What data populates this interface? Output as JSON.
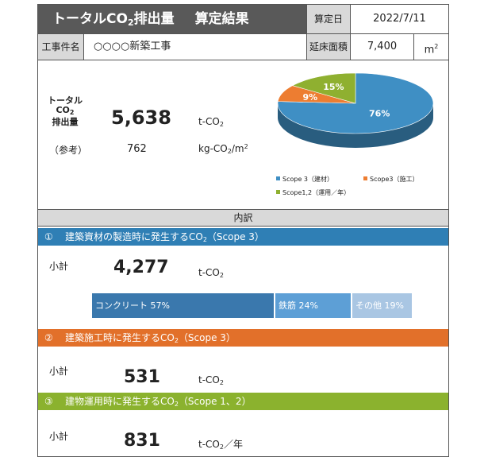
{
  "header": {
    "title_pre": "トータルCO",
    "title_sub": "2",
    "title_post": "排出量",
    "title_suffix": "算定結果",
    "date_label": "算定日",
    "date_value": "2022/7/11"
  },
  "project": {
    "name_label": "工事件名",
    "name_value": "○○○○新築工事",
    "area_label": "延床面積",
    "area_value": "7,400",
    "area_unit": "m",
    "area_unit_sup": "2"
  },
  "total": {
    "label_line1": "トータル",
    "label_line2": "CO",
    "label_line2_sub": "2",
    "label_line3": "排出量",
    "value": "5,638",
    "unit_pre": "t-CO",
    "unit_sub": "2",
    "ref_label": "（参考）",
    "ref_value": "762",
    "ref_unit_pre": "kg-CO",
    "ref_unit_sub": "2",
    "ref_unit_mid": "/m",
    "ref_unit_sup": "2"
  },
  "pie": {
    "slices": [
      {
        "label": "Scope 3（建材）",
        "value": 76,
        "display": "76%",
        "color": "#3f8fc4"
      },
      {
        "label": "Scope3（施工）",
        "value": 9,
        "display": "9%",
        "color": "#ed7d31"
      },
      {
        "label": "Scope1,2（運用／年）",
        "value": 15,
        "display": "15%",
        "color": "#8fb030"
      }
    ]
  },
  "breakdown_title": "内訳",
  "sections": [
    {
      "number": "①",
      "title_pre": "建築資材の製造時に発生するCO",
      "title_sub": "2",
      "title_post": "（Scope 3）",
      "color": "#2f7fb5",
      "subtotal_label": "小計",
      "value": "4,277",
      "unit_pre": "t-CO",
      "unit_sub": "2",
      "unit_post": ""
    },
    {
      "number": "②",
      "title_pre": "建築施工時に発生するCO",
      "title_sub": "2",
      "title_post": "（Scope 3）",
      "color": "#e2702a",
      "subtotal_label": "小計",
      "value": "531",
      "unit_pre": "t-CO",
      "unit_sub": "2",
      "unit_post": ""
    },
    {
      "number": "③",
      "title_pre": "建物運用時に発生するCO",
      "title_sub": "2",
      "title_post": "（Scope 1、2）",
      "color": "#8bb22e",
      "subtotal_label": "小計",
      "value": "831",
      "unit_pre": "t-CO",
      "unit_sub": "2",
      "unit_post": "／年"
    }
  ],
  "materials": [
    {
      "label": "コンクリート 57%",
      "value": 57,
      "color": "#3a78ad"
    },
    {
      "label": "鉄筋 24%",
      "value": 24,
      "color": "#5d9fd6"
    },
    {
      "label": "その他 19%",
      "value": 19,
      "color": "#a9c6e3"
    }
  ]
}
